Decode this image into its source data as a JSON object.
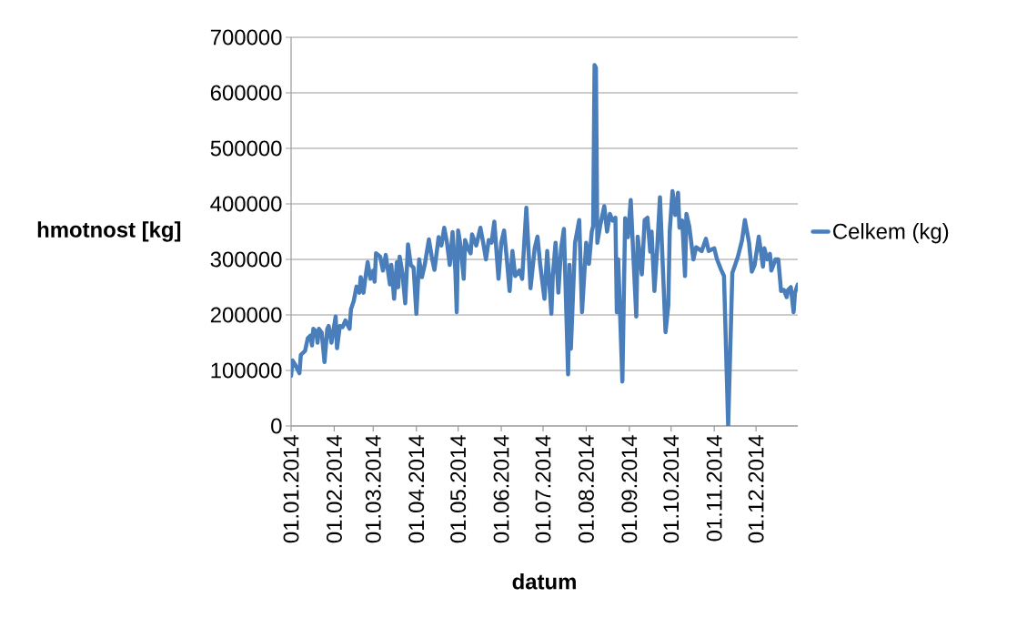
{
  "chart_data": {
    "type": "line",
    "xlabel": "datum",
    "ylabel": "hmotnost [kg]",
    "xlim": [
      "2014-01-01",
      "2014-12-31"
    ],
    "ylim": [
      0,
      700000
    ],
    "yticks": [
      0,
      100000,
      200000,
      300000,
      400000,
      500000,
      600000,
      700000
    ],
    "xticks": [
      {
        "value": "2014-01-01",
        "label": "01.01.2014"
      },
      {
        "value": "2014-02-01",
        "label": "01.02.2014"
      },
      {
        "value": "2014-03-01",
        "label": "01.03.2014"
      },
      {
        "value": "2014-04-01",
        "label": "01.04.2014"
      },
      {
        "value": "2014-05-01",
        "label": "01.05.2014"
      },
      {
        "value": "2014-06-01",
        "label": "01.06.2014"
      },
      {
        "value": "2014-07-01",
        "label": "01.07.2014"
      },
      {
        "value": "2014-08-01",
        "label": "01.08.2014"
      },
      {
        "value": "2014-09-01",
        "label": "01.09.2014"
      },
      {
        "value": "2014-10-01",
        "label": "01.10.2014"
      },
      {
        "value": "2014-11-01",
        "label": "01.11.2014"
      },
      {
        "value": "2014-12-01",
        "label": "01.12.2014"
      }
    ],
    "grid": "y",
    "legend": "right",
    "line_style": "solid",
    "x": [
      "2014-01-01",
      "2014-01-02",
      "2014-01-04",
      "2014-01-07",
      "2014-01-08",
      "2014-01-11",
      "2014-01-13",
      "2014-01-15",
      "2014-01-16",
      "2014-01-17",
      "2014-01-19",
      "2014-01-20",
      "2014-01-21",
      "2014-01-23",
      "2014-01-25",
      "2014-01-27",
      "2014-01-28",
      "2014-01-30",
      "2014-02-02",
      "2014-02-03",
      "2014-02-05",
      "2014-02-07",
      "2014-02-09",
      "2014-02-12",
      "2014-02-13",
      "2014-02-15",
      "2014-02-17",
      "2014-02-19",
      "2014-02-20",
      "2014-02-22",
      "2014-02-23",
      "2014-02-25",
      "2014-02-27",
      "2014-03-01",
      "2014-03-02",
      "2014-03-03",
      "2014-03-06",
      "2014-03-08",
      "2014-03-10",
      "2014-03-13",
      "2014-03-14",
      "2014-03-16",
      "2014-03-18",
      "2014-03-19",
      "2014-03-20",
      "2014-03-22",
      "2014-03-24",
      "2014-03-26",
      "2014-03-28",
      "2014-03-30",
      "2014-04-01",
      "2014-04-03",
      "2014-04-05",
      "2014-04-07",
      "2014-04-10",
      "2014-04-12",
      "2014-04-14",
      "2014-04-17",
      "2014-04-19",
      "2014-04-21",
      "2014-04-23",
      "2014-04-25",
      "2014-04-27",
      "2014-04-29",
      "2014-04-30",
      "2014-05-01",
      "2014-05-03",
      "2014-05-05",
      "2014-05-06",
      "2014-05-08",
      "2014-05-10",
      "2014-05-11",
      "2014-05-14",
      "2014-05-17",
      "2014-05-19",
      "2014-05-21",
      "2014-05-23",
      "2014-05-25",
      "2014-05-27",
      "2014-05-30",
      "2014-06-01",
      "2014-06-03",
      "2014-06-05",
      "2014-06-07",
      "2014-06-09",
      "2014-06-11",
      "2014-06-14",
      "2014-06-16",
      "2014-06-19",
      "2014-06-22",
      "2014-06-25",
      "2014-06-27",
      "2014-06-29",
      "2014-07-02",
      "2014-07-04",
      "2014-07-07",
      "2014-07-08",
      "2014-07-10",
      "2014-07-12",
      "2014-07-14",
      "2014-07-16",
      "2014-07-19",
      "2014-07-20",
      "2014-07-21",
      "2014-07-24",
      "2014-07-27",
      "2014-07-29",
      "2014-08-01",
      "2014-08-03",
      "2014-08-05",
      "2014-08-06",
      "2014-08-07",
      "2014-08-08",
      "2014-08-09",
      "2014-08-11",
      "2014-08-14",
      "2014-08-16",
      "2014-08-18",
      "2014-08-20",
      "2014-08-22",
      "2014-08-23",
      "2014-08-24",
      "2014-08-27",
      "2014-08-29",
      "2014-08-31",
      "2014-09-02",
      "2014-09-04",
      "2014-09-06",
      "2014-09-07",
      "2014-09-10",
      "2014-09-12",
      "2014-09-14",
      "2014-09-16",
      "2014-09-17",
      "2014-09-19",
      "2014-09-21",
      "2014-09-23",
      "2014-09-25",
      "2014-09-27",
      "2014-09-29",
      "2014-09-30",
      "2014-10-02",
      "2014-10-04",
      "2014-10-06",
      "2014-10-07",
      "2014-10-09",
      "2014-10-11",
      "2014-10-12",
      "2014-10-14",
      "2014-10-17",
      "2014-10-19",
      "2014-10-23",
      "2014-10-26",
      "2014-10-28",
      "2014-11-01",
      "2014-11-03",
      "2014-11-06",
      "2014-11-08",
      "2014-11-11",
      "2014-11-14",
      "2014-11-16",
      "2014-11-18",
      "2014-11-21",
      "2014-11-23",
      "2014-11-26",
      "2014-11-28",
      "2014-11-30",
      "2014-12-03",
      "2014-12-06",
      "2014-12-07",
      "2014-12-09",
      "2014-12-11",
      "2014-12-12",
      "2014-12-15",
      "2014-12-17",
      "2014-12-19",
      "2014-12-21",
      "2014-12-23",
      "2014-12-24",
      "2014-12-26",
      "2014-12-28",
      "2014-12-29",
      "2014-12-31"
    ],
    "series": [
      {
        "name": "Celkem (kg)",
        "color": "#4a7ebb",
        "values": [
          90000,
          118000,
          110000,
          95000,
          128000,
          135000,
          158000,
          163000,
          145000,
          175000,
          170000,
          150000,
          175000,
          168000,
          115000,
          175000,
          180000,
          150000,
          197000,
          140000,
          180000,
          178000,
          190000,
          175000,
          210000,
          225000,
          251000,
          240000,
          268000,
          240000,
          260000,
          295000,
          265000,
          280000,
          260000,
          311000,
          305000,
          280000,
          308000,
          255000,
          290000,
          229000,
          295000,
          250000,
          305000,
          275000,
          221000,
          327000,
          290000,
          285000,
          202000,
          300000,
          268000,
          290000,
          336000,
          305000,
          281000,
          340000,
          325000,
          357000,
          330000,
          290000,
          349000,
          280000,
          205000,
          352000,
          320000,
          265000,
          335000,
          320000,
          311000,
          345000,
          325000,
          357000,
          330000,
          300000,
          335000,
          330000,
          368000,
          265000,
          330000,
          352000,
          300000,
          243000,
          315000,
          270000,
          280000,
          265000,
          393000,
          248000,
          320000,
          341000,
          290000,
          229000,
          315000,
          202000,
          270000,
          330000,
          240000,
          320000,
          355000,
          93000,
          290000,
          139000,
          330000,
          371000,
          205000,
          330000,
          292000,
          350000,
          360000,
          650000,
          645000,
          330000,
          360000,
          396000,
          350000,
          382000,
          370000,
          375000,
          205000,
          300000,
          80000,
          374000,
          340000,
          407000,
          300000,
          197000,
          341000,
          273000,
          371000,
          375000,
          314000,
          350000,
          243000,
          320000,
          412000,
          290000,
          169000,
          218000,
          350000,
          423000,
          380000,
          420000,
          357000,
          370000,
          270000,
          382000,
          360000,
          300000,
          322000,
          315000,
          337000,
          315000,
          320000,
          300000,
          281000,
          270000,
          0,
          276000,
          290000,
          305000,
          335000,
          371000,
          330000,
          278000,
          290000,
          341000,
          287000,
          320000,
          300000,
          310000,
          280000,
          300000,
          300000,
          243000,
          245000,
          232000,
          245000,
          250000,
          205000,
          240000,
          255000
        ]
      }
    ]
  }
}
